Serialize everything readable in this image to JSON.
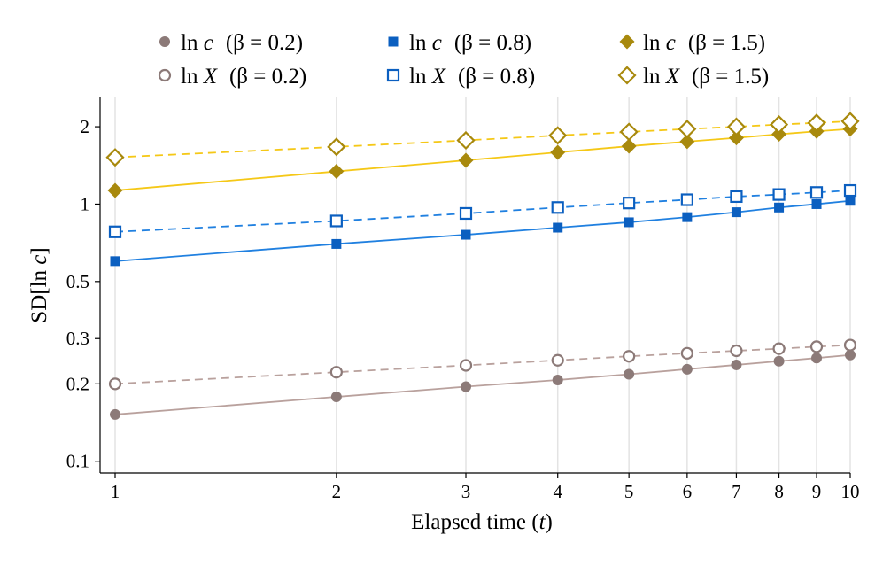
{
  "chart_data": {
    "type": "line",
    "xlabel": "Elapsed time (t)",
    "ylabel": "SD[ln c]",
    "x_scale": "log",
    "y_scale": "log",
    "xlim": [
      1,
      10
    ],
    "ylim": [
      0.09,
      2.6
    ],
    "x": [
      1,
      2,
      3,
      4,
      5,
      6,
      7,
      8,
      9,
      10
    ],
    "x_ticks": [
      1,
      2,
      3,
      4,
      5,
      6,
      7,
      8,
      9,
      10
    ],
    "y_ticks": [
      0.1,
      0.2,
      0.3,
      0.5,
      1,
      2
    ],
    "y_tick_labels": [
      "0.1",
      "0.2",
      "0.3",
      "0.5",
      "1",
      "2"
    ],
    "grid": "vertical",
    "legend_position": "top",
    "series": [
      {
        "name": "ln c (β = 0.2)",
        "var": "c",
        "beta": "(β = 0.2)",
        "marker": "circle-filled",
        "line": "solid",
        "values": [
          0.152,
          0.178,
          0.195,
          0.207,
          0.218,
          0.228,
          0.237,
          0.245,
          0.252,
          0.259
        ]
      },
      {
        "name": "ln c (β = 0.8)",
        "var": "c",
        "beta": "(β = 0.8)",
        "marker": "square-filled",
        "line": "solid",
        "values": [
          0.6,
          0.7,
          0.76,
          0.81,
          0.85,
          0.89,
          0.93,
          0.97,
          1.0,
          1.03
        ]
      },
      {
        "name": "ln c (β = 1.5)",
        "var": "c",
        "beta": "(β = 1.5)",
        "marker": "diamond-filled",
        "line": "solid",
        "values": [
          1.13,
          1.34,
          1.48,
          1.59,
          1.68,
          1.75,
          1.81,
          1.87,
          1.92,
          1.96
        ]
      },
      {
        "name": "ln X (β = 0.2)",
        "var": "X",
        "beta": "(β = 0.2)",
        "marker": "circle-hollow",
        "line": "dashed",
        "values": [
          0.2,
          0.222,
          0.236,
          0.247,
          0.256,
          0.263,
          0.269,
          0.274,
          0.279,
          0.283
        ]
      },
      {
        "name": "ln X (β = 0.8)",
        "var": "X",
        "beta": "(β = 0.8)",
        "marker": "square-hollow",
        "line": "dashed",
        "values": [
          0.78,
          0.86,
          0.92,
          0.97,
          1.01,
          1.04,
          1.07,
          1.09,
          1.11,
          1.13
        ]
      },
      {
        "name": "ln X (β = 1.5)",
        "var": "X",
        "beta": "(β = 1.5)",
        "marker": "diamond-hollow",
        "line": "dashed",
        "values": [
          1.52,
          1.67,
          1.77,
          1.85,
          1.91,
          1.96,
          2.0,
          2.04,
          2.07,
          2.1
        ]
      }
    ]
  },
  "colors": {
    "beta_0_2_marker": "#8c7a78",
    "beta_0_2_line": "#b9a19d",
    "beta_0_8_marker": "#0b5fc0",
    "beta_0_8_line": "#2080e0",
    "beta_1_5_marker": "#a8890d",
    "beta_1_5_line": "#f5c817",
    "grid": "#e3e3e3",
    "axis": "#000000"
  }
}
